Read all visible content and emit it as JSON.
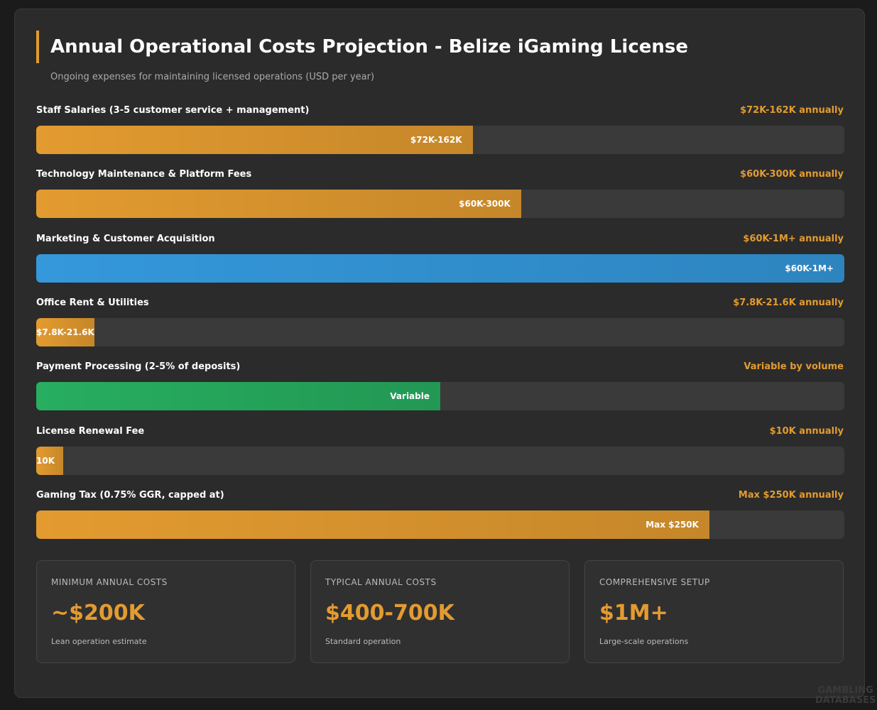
{
  "header": {
    "title": "Annual Operational Costs Projection - Belize iGaming License",
    "subtitle": "Ongoing expenses for maintaining licensed operations (USD per year)"
  },
  "rows": [
    {
      "label": "Staff Salaries (3-5 customer service + management)",
      "amount": "$72K-162K annually",
      "bar_label": "$72K-162K",
      "percent": 54,
      "color": "#e39b30"
    },
    {
      "label": "Technology Maintenance & Platform Fees",
      "amount": "$60K-300K annually",
      "bar_label": "$60K-300K",
      "percent": 60,
      "color": "#e39b30"
    },
    {
      "label": "Marketing & Customer Acquisition",
      "amount": "$60K-1M+ annually",
      "bar_label": "$60K-1M+",
      "percent": 100,
      "color": "#3498db"
    },
    {
      "label": "Office Rent & Utilities",
      "amount": "$7.8K-21.6K annually",
      "bar_label": "$7.8K-21.6K",
      "percent": 7.2,
      "color": "#e39b30"
    },
    {
      "label": "Payment Processing (2-5% of deposits)",
      "amount": "Variable by volume",
      "bar_label": "Variable",
      "percent": 50,
      "color": "#27ae60"
    },
    {
      "label": "License Renewal Fee",
      "amount": "$10K annually",
      "bar_label": "10K",
      "percent": 3.3,
      "color": "#e39b30"
    },
    {
      "label": "Gaming Tax (0.75% GGR, capped at)",
      "amount": "Max $250K annually",
      "bar_label": "Max $250K",
      "percent": 83.3,
      "color": "#e39b30"
    }
  ],
  "summary": [
    {
      "label": "MINIMUM ANNUAL COSTS",
      "value": "~$200K",
      "note": "Lean operation estimate"
    },
    {
      "label": "TYPICAL ANNUAL COSTS",
      "value": "$400-700K",
      "note": "Standard operation"
    },
    {
      "label": "COMPREHENSIVE SETUP",
      "value": "$1M+",
      "note": "Large-scale operations"
    }
  ],
  "watermark": [
    "GAMBLING",
    "DATABASES"
  ]
}
